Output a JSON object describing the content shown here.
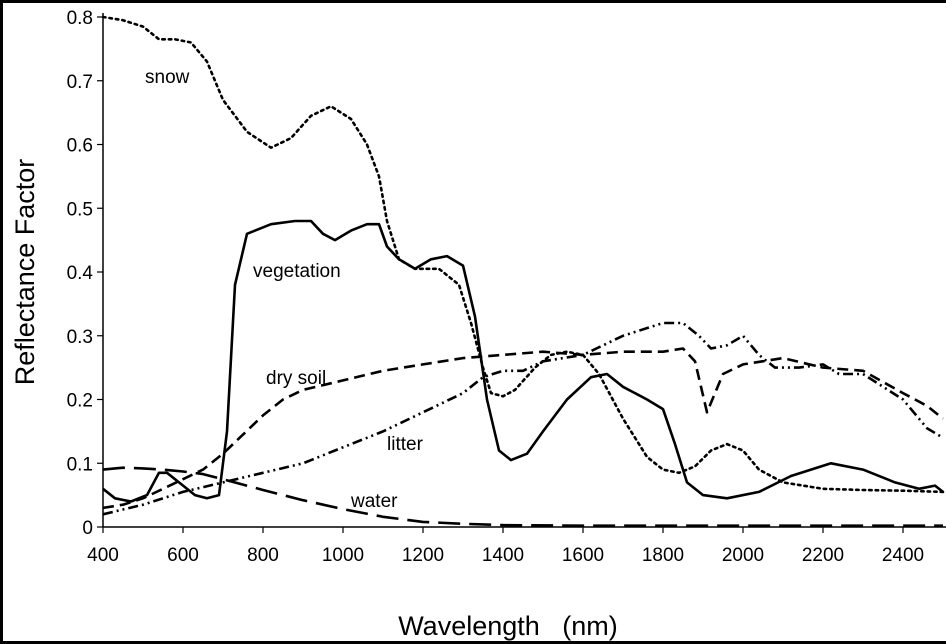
{
  "chart_data": {
    "type": "line",
    "xlabel": "Wavelength   (nm)",
    "ylabel": "Reflectance Factor",
    "xlim": [
      400,
      2500
    ],
    "ylim": [
      0,
      0.8
    ],
    "xticks": [
      400,
      600,
      800,
      1000,
      1200,
      1400,
      1600,
      1800,
      2000,
      2200,
      2400
    ],
    "yticks": [
      0,
      0.1,
      0.2,
      0.3,
      0.4,
      0.5,
      0.6,
      0.7,
      0.8
    ],
    "ytick_labels": [
      "0",
      "0.1",
      "0.2",
      "0.3",
      "0.4",
      "0.5",
      "0.6",
      "0.7",
      "0.8"
    ],
    "grid": false,
    "legend": "inline labels",
    "series": [
      {
        "name": "snow",
        "style": "dotted",
        "points": [
          [
            400,
            0.8
          ],
          [
            450,
            0.795
          ],
          [
            500,
            0.785
          ],
          [
            540,
            0.765
          ],
          [
            580,
            0.765
          ],
          [
            620,
            0.76
          ],
          [
            660,
            0.73
          ],
          [
            700,
            0.67
          ],
          [
            760,
            0.62
          ],
          [
            820,
            0.595
          ],
          [
            870,
            0.61
          ],
          [
            920,
            0.645
          ],
          [
            970,
            0.66
          ],
          [
            1020,
            0.64
          ],
          [
            1060,
            0.6
          ],
          [
            1090,
            0.55
          ],
          [
            1110,
            0.48
          ],
          [
            1140,
            0.42
          ],
          [
            1180,
            0.405
          ],
          [
            1240,
            0.405
          ],
          [
            1290,
            0.38
          ],
          [
            1320,
            0.32
          ],
          [
            1350,
            0.25
          ],
          [
            1370,
            0.21
          ],
          [
            1400,
            0.205
          ],
          [
            1430,
            0.215
          ],
          [
            1480,
            0.25
          ],
          [
            1520,
            0.27
          ],
          [
            1560,
            0.275
          ],
          [
            1600,
            0.27
          ],
          [
            1640,
            0.24
          ],
          [
            1700,
            0.17
          ],
          [
            1760,
            0.11
          ],
          [
            1800,
            0.09
          ],
          [
            1840,
            0.085
          ],
          [
            1880,
            0.095
          ],
          [
            1920,
            0.12
          ],
          [
            1960,
            0.13
          ],
          [
            2000,
            0.12
          ],
          [
            2040,
            0.09
          ],
          [
            2100,
            0.07
          ],
          [
            2200,
            0.06
          ],
          [
            2300,
            0.058
          ],
          [
            2400,
            0.057
          ],
          [
            2500,
            0.055
          ]
        ]
      },
      {
        "name": "vegetation",
        "style": "solid",
        "points": [
          [
            400,
            0.06
          ],
          [
            430,
            0.045
          ],
          [
            470,
            0.04
          ],
          [
            510,
            0.05
          ],
          [
            540,
            0.085
          ],
          [
            560,
            0.085
          ],
          [
            590,
            0.07
          ],
          [
            630,
            0.05
          ],
          [
            660,
            0.045
          ],
          [
            690,
            0.05
          ],
          [
            710,
            0.15
          ],
          [
            730,
            0.38
          ],
          [
            760,
            0.46
          ],
          [
            820,
            0.475
          ],
          [
            880,
            0.48
          ],
          [
            920,
            0.48
          ],
          [
            950,
            0.46
          ],
          [
            980,
            0.45
          ],
          [
            1020,
            0.465
          ],
          [
            1060,
            0.475
          ],
          [
            1090,
            0.475
          ],
          [
            1110,
            0.44
          ],
          [
            1140,
            0.42
          ],
          [
            1180,
            0.405
          ],
          [
            1220,
            0.42
          ],
          [
            1260,
            0.425
          ],
          [
            1300,
            0.41
          ],
          [
            1330,
            0.33
          ],
          [
            1360,
            0.2
          ],
          [
            1390,
            0.12
          ],
          [
            1420,
            0.105
          ],
          [
            1460,
            0.115
          ],
          [
            1500,
            0.15
          ],
          [
            1560,
            0.2
          ],
          [
            1620,
            0.235
          ],
          [
            1660,
            0.24
          ],
          [
            1700,
            0.22
          ],
          [
            1760,
            0.2
          ],
          [
            1800,
            0.185
          ],
          [
            1830,
            0.13
          ],
          [
            1860,
            0.07
          ],
          [
            1900,
            0.05
          ],
          [
            1960,
            0.045
          ],
          [
            2040,
            0.055
          ],
          [
            2120,
            0.08
          ],
          [
            2220,
            0.1
          ],
          [
            2300,
            0.09
          ],
          [
            2380,
            0.07
          ],
          [
            2440,
            0.06
          ],
          [
            2480,
            0.065
          ],
          [
            2500,
            0.055
          ]
        ]
      },
      {
        "name": "dry soil",
        "style": "dashed",
        "points": [
          [
            400,
            0.03
          ],
          [
            450,
            0.035
          ],
          [
            500,
            0.045
          ],
          [
            550,
            0.06
          ],
          [
            600,
            0.075
          ],
          [
            650,
            0.09
          ],
          [
            700,
            0.115
          ],
          [
            750,
            0.145
          ],
          [
            800,
            0.175
          ],
          [
            850,
            0.2
          ],
          [
            900,
            0.215
          ],
          [
            1000,
            0.23
          ],
          [
            1100,
            0.245
          ],
          [
            1200,
            0.255
          ],
          [
            1300,
            0.265
          ],
          [
            1400,
            0.27
          ],
          [
            1500,
            0.275
          ],
          [
            1600,
            0.27
          ],
          [
            1700,
            0.275
          ],
          [
            1800,
            0.275
          ],
          [
            1850,
            0.28
          ],
          [
            1880,
            0.26
          ],
          [
            1910,
            0.18
          ],
          [
            1950,
            0.24
          ],
          [
            2000,
            0.255
          ],
          [
            2100,
            0.265
          ],
          [
            2200,
            0.25
          ],
          [
            2300,
            0.245
          ],
          [
            2400,
            0.21
          ],
          [
            2460,
            0.19
          ],
          [
            2500,
            0.17
          ]
        ]
      },
      {
        "name": "litter",
        "style": "dash-dot-dot",
        "points": [
          [
            400,
            0.02
          ],
          [
            500,
            0.035
          ],
          [
            600,
            0.055
          ],
          [
            700,
            0.07
          ],
          [
            800,
            0.085
          ],
          [
            900,
            0.1
          ],
          [
            1000,
            0.125
          ],
          [
            1100,
            0.15
          ],
          [
            1200,
            0.18
          ],
          [
            1300,
            0.21
          ],
          [
            1350,
            0.235
          ],
          [
            1400,
            0.245
          ],
          [
            1450,
            0.245
          ],
          [
            1500,
            0.26
          ],
          [
            1600,
            0.27
          ],
          [
            1700,
            0.3
          ],
          [
            1800,
            0.32
          ],
          [
            1850,
            0.32
          ],
          [
            1890,
            0.3
          ],
          [
            1920,
            0.28
          ],
          [
            1960,
            0.285
          ],
          [
            2000,
            0.3
          ],
          [
            2040,
            0.27
          ],
          [
            2080,
            0.25
          ],
          [
            2140,
            0.25
          ],
          [
            2200,
            0.255
          ],
          [
            2240,
            0.24
          ],
          [
            2300,
            0.24
          ],
          [
            2400,
            0.2
          ],
          [
            2460,
            0.155
          ],
          [
            2500,
            0.14
          ]
        ]
      },
      {
        "name": "water",
        "style": "long-dash",
        "points": [
          [
            400,
            0.09
          ],
          [
            450,
            0.093
          ],
          [
            500,
            0.092
          ],
          [
            550,
            0.09
          ],
          [
            600,
            0.087
          ],
          [
            650,
            0.083
          ],
          [
            700,
            0.075
          ],
          [
            800,
            0.058
          ],
          [
            900,
            0.042
          ],
          [
            1000,
            0.028
          ],
          [
            1100,
            0.016
          ],
          [
            1200,
            0.008
          ],
          [
            1300,
            0.005
          ],
          [
            1400,
            0.003
          ],
          [
            1600,
            0.002
          ],
          [
            2000,
            0.002
          ],
          [
            2500,
            0.002
          ]
        ]
      }
    ]
  }
}
